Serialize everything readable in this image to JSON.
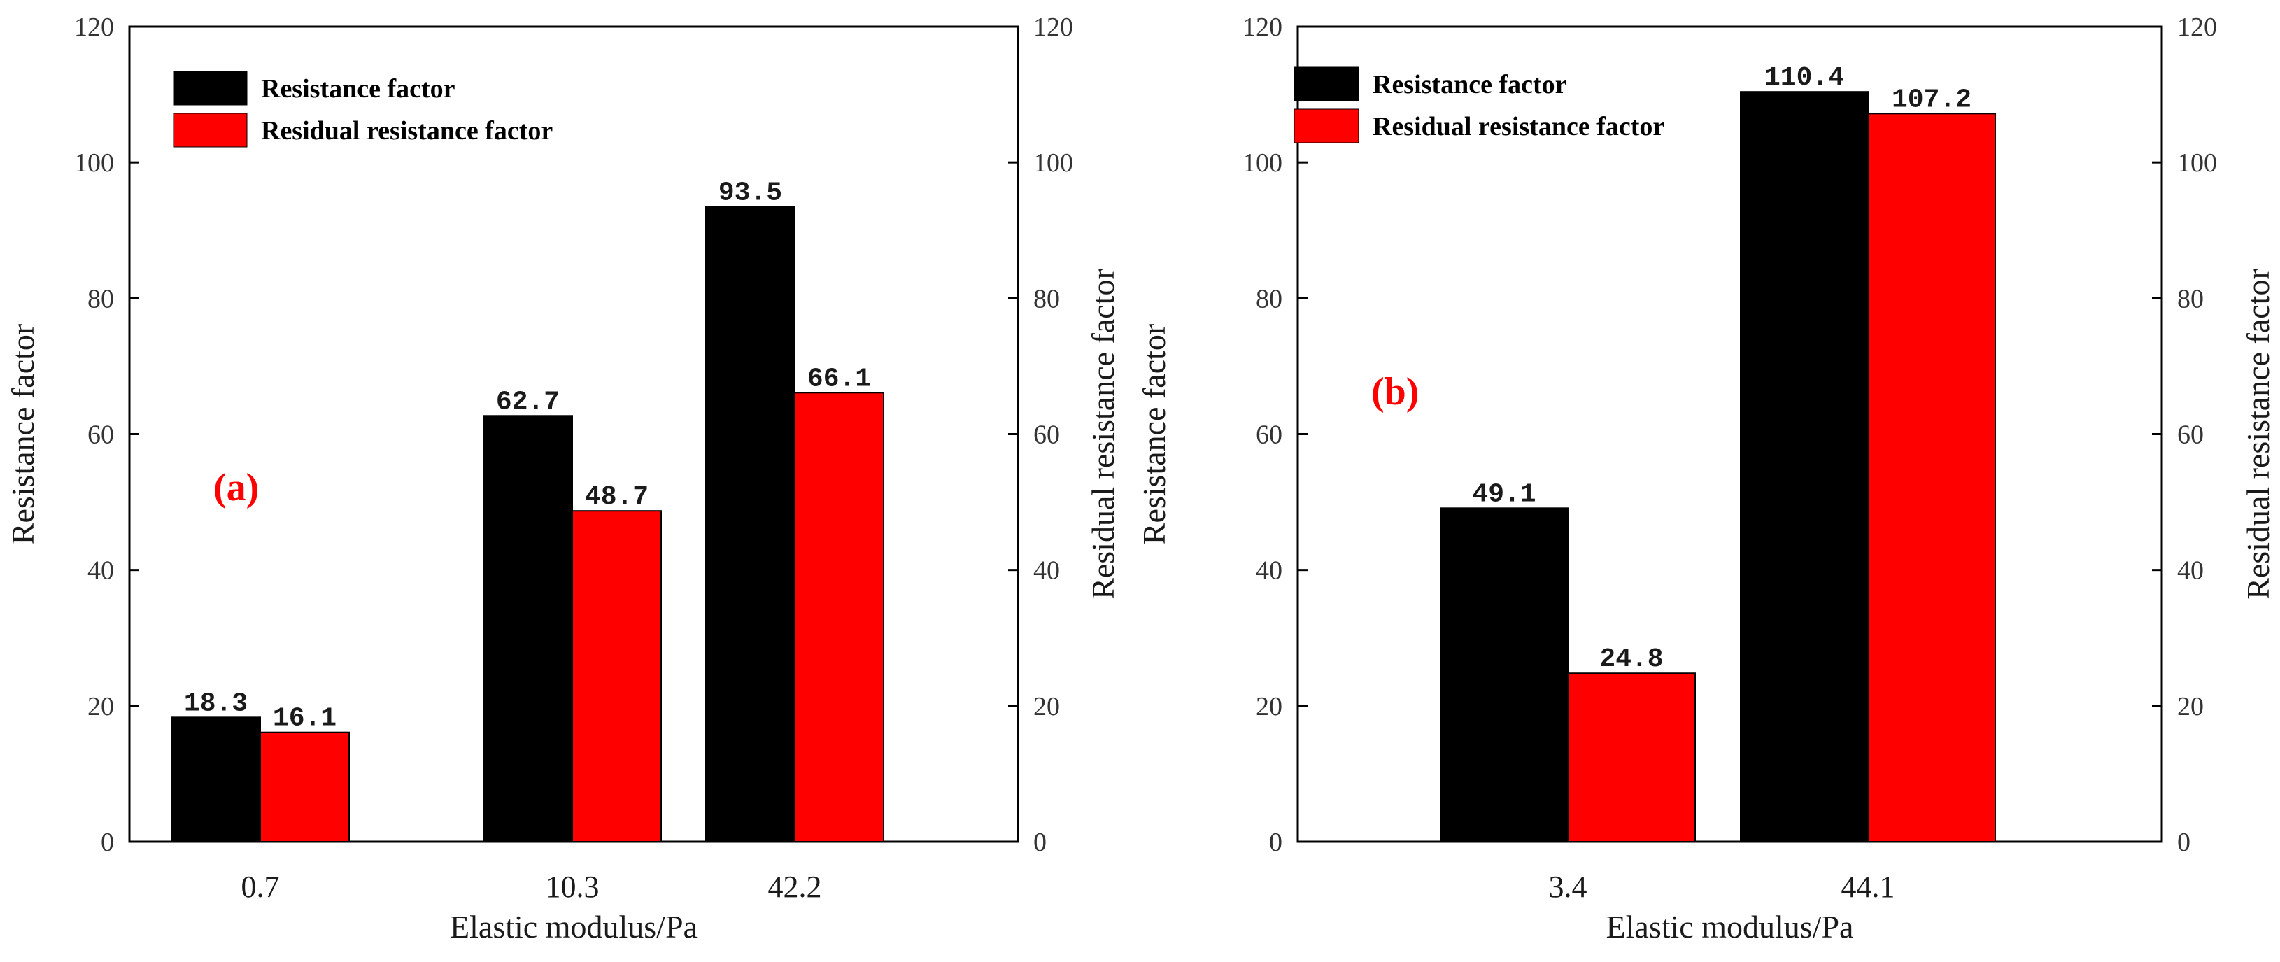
{
  "chart_data": [
    {
      "type": "bar",
      "panel_label": "(a)",
      "categories": [
        "0.7",
        "10.3",
        "42.2"
      ],
      "series": [
        {
          "name": "Resistance factor",
          "values": [
            18.3,
            62.7,
            93.5
          ],
          "value_labels": [
            "18.3",
            "62.7",
            "93.5"
          ]
        },
        {
          "name": "Residual resistance factor",
          "values": [
            16.1,
            48.7,
            66.1
          ],
          "value_labels": [
            "16.1",
            "48.7",
            "66.1"
          ]
        }
      ],
      "xlabel": "Elastic modulus/Pa",
      "ylabel": "Resistance factor",
      "y2label": "Residual resistance factor",
      "ylim": [
        0,
        120
      ],
      "yticks": [
        "0",
        "20",
        "40",
        "60",
        "80",
        "100",
        "120"
      ],
      "legend": "top-left",
      "grid": false
    },
    {
      "type": "bar",
      "panel_label": "(b)",
      "categories": [
        "3.4",
        "44.1"
      ],
      "series": [
        {
          "name": "Resistance factor",
          "values": [
            49.1,
            110.4
          ],
          "value_labels": [
            "49.1",
            "110.4"
          ]
        },
        {
          "name": "Residual resistance factor",
          "values": [
            24.8,
            107.2
          ],
          "value_labels": [
            "24.8",
            "107.2"
          ]
        }
      ],
      "xlabel": "Elastic modulus/Pa",
      "ylabel": "Resistance factor",
      "y2label": "Residual resistance factor",
      "ylim": [
        0,
        120
      ],
      "yticks": [
        "0",
        "20",
        "40",
        "60",
        "80",
        "100",
        "120"
      ],
      "legend": "top-left",
      "grid": false
    }
  ],
  "colors": {
    "resistance": "#000000",
    "residual": "#ff0000",
    "panel_label": "#ff0000"
  }
}
